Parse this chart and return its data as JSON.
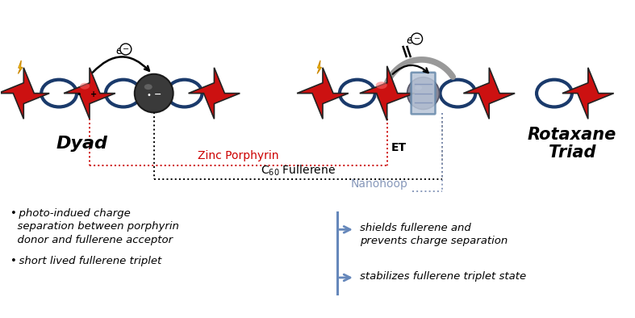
{
  "bg_color": "#ffffff",
  "dyad_label": "Dyad",
  "rotaxane_label": "Rotaxane\nTriad",
  "zinc_porphyrin_label": "Zinc Porphyrin",
  "c60_fullerene_label": "C$_{60}$ Fullerene",
  "nanohoop_label": "Nanohoop",
  "et_label": "ET",
  "bullet1_line1": "• photo-indued charge",
  "bullet1_line2": "  separation between porphyrin",
  "bullet1_line3": "  donor and fullerene acceptor",
  "bullet2": "• short lived fullerene triplet",
  "right1_line1": "shields fullerene and",
  "right1_line2": "prevents charge separation",
  "right2": "stabilizes fullerene triplet state",
  "star_color_red": "#cc1111",
  "ring_color": "#1a3a6b",
  "nanohoop_face": "#b8c5d8",
  "nanohoop_edge": "#6688aa",
  "fullerene_dark": "#444444",
  "fullerene_gray": "#888899",
  "arrow_gray": "#999999",
  "red_dot_color": "#cc0000",
  "blue_dot_color": "#8899bb",
  "zinc_porphyrin_color": "#cc0000",
  "bracket_color": "#6688bb",
  "lightning_yellow": "#ffdd00",
  "lightning_dark": "#cc8800"
}
